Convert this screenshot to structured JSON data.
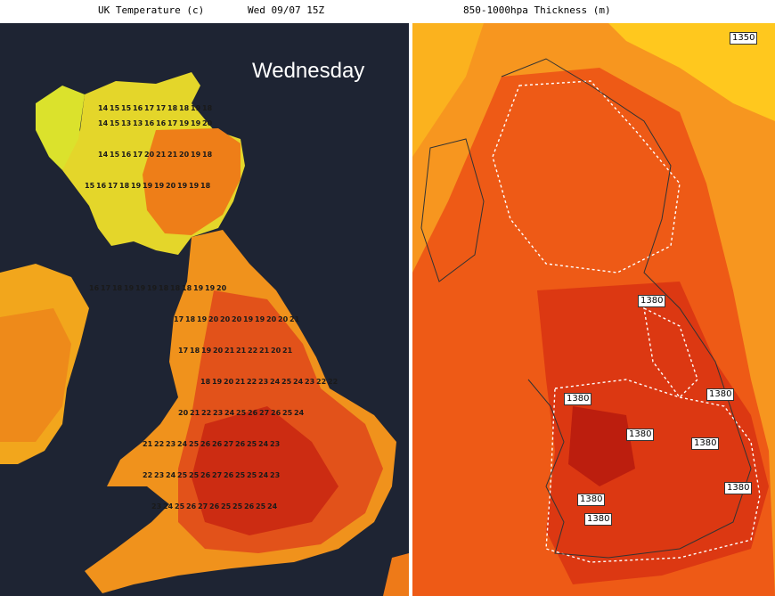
{
  "header": {
    "left_title": "UK Temperature (c)",
    "left_time": "Wed 09/07 15Z",
    "right_title": "850-1000hpa Thickness (m)"
  },
  "left_map": {
    "day_label": "Wednesday",
    "temperature_range_c": [
      13,
      28
    ],
    "colors": {
      "sea": "#1e2433",
      "cool": "#d8ec32",
      "mild": "#f2b21e",
      "warm": "#ee6a14",
      "hot": "#d02a10"
    },
    "temperature_rows": [
      "14151516171718181918",
      "14151313161617191920",
      "14151617202121201918",
      "1516171819191920191918",
      "161718191919181818191920",
      "1718192020201919202021",
      "17181920212122212021",
      "181920212223242524232222",
      "2021222324252627262524",
      "212223242526262726252423",
      "222324252526272625252423",
      "2324252627262525262524"
    ]
  },
  "right_map": {
    "contour_value": "1380",
    "corner_value": "1350",
    "colors": {
      "low": "#ffd21e",
      "mid": "#f58a1e",
      "high": "#e83a14",
      "peak": "#c81e10",
      "contour": "#ffffff",
      "coast": "#333333"
    }
  }
}
